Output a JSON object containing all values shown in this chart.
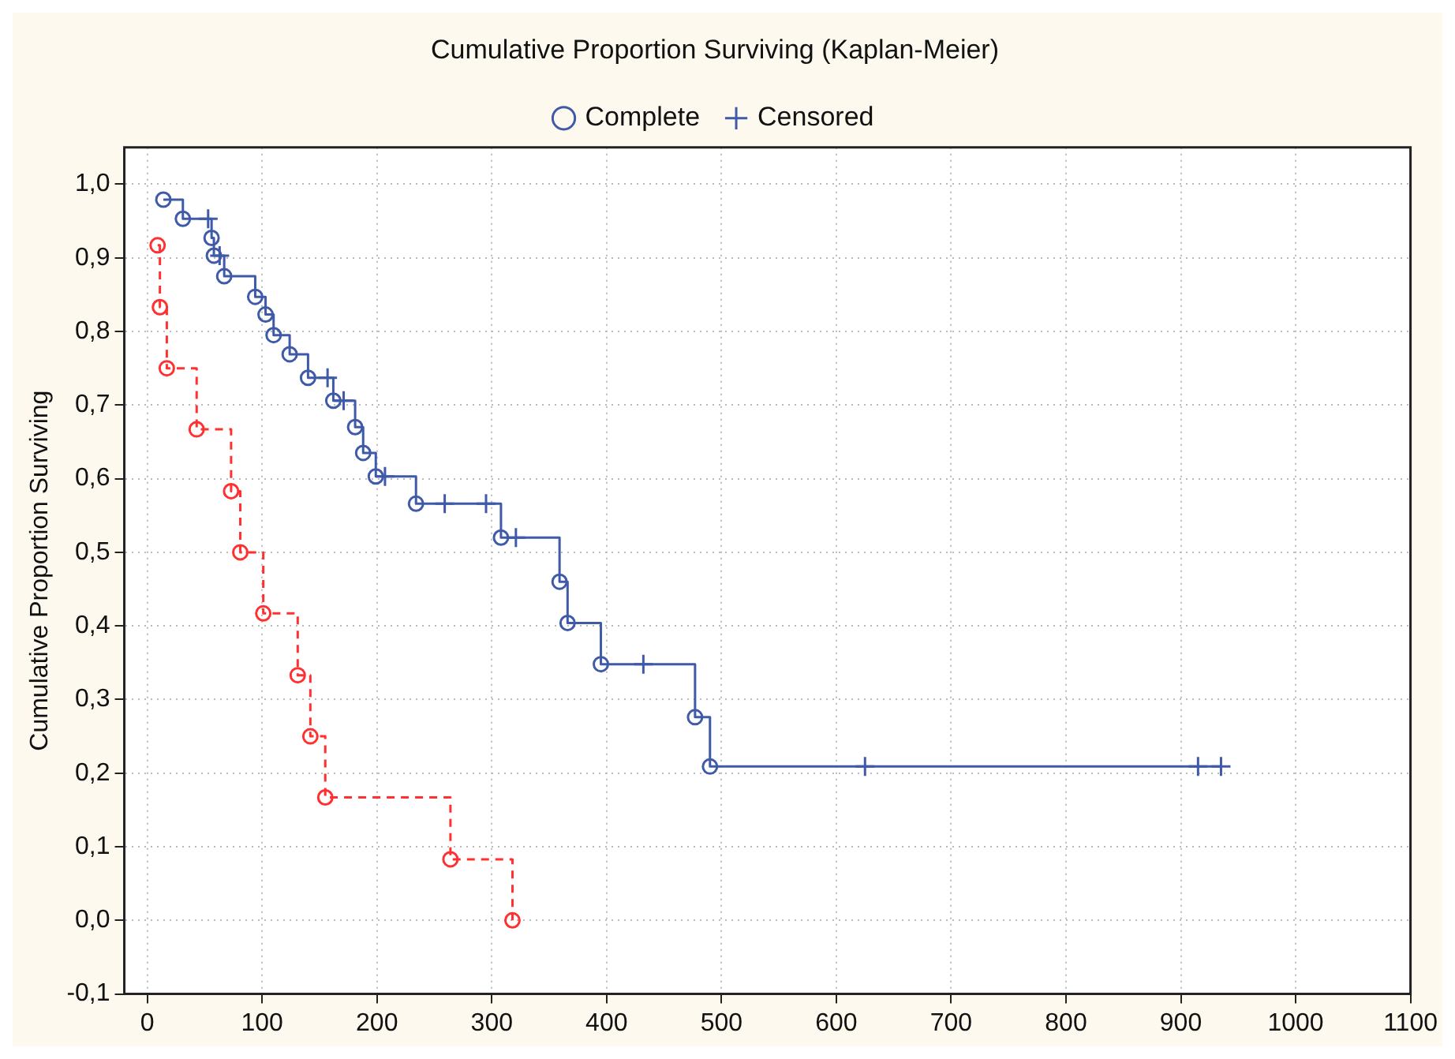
{
  "chart_data": {
    "type": "step",
    "title": "Cumulative Proportion Surviving (Kaplan-Meier)",
    "ylabel": "Cumulative Proportion Surviving",
    "xlim": [
      -20,
      1100
    ],
    "xticks": [
      0,
      100,
      200,
      300,
      400,
      500,
      600,
      700,
      800,
      900,
      1000,
      1100
    ],
    "ylim": [
      -0.1,
      1.05
    ],
    "yticks": [
      {
        "value": -0.1,
        "label": "-0,1"
      },
      {
        "value": 0,
        "label": "0,0"
      },
      {
        "value": 0.1,
        "label": "0,1"
      },
      {
        "value": 0.2,
        "label": "0,2"
      },
      {
        "value": 0.3,
        "label": "0,3"
      },
      {
        "value": 0.4,
        "label": "0,4"
      },
      {
        "value": 0.5,
        "label": "0,5"
      },
      {
        "value": 0.6,
        "label": "0,6"
      },
      {
        "value": 0.7,
        "label": "0,7"
      },
      {
        "value": 0.8,
        "label": "0,8"
      },
      {
        "value": 0.9,
        "label": "0,9"
      },
      {
        "value": 1.0,
        "label": "1,0"
      }
    ],
    "grid": true,
    "legend": "top",
    "series": [
      {
        "color": "#3f5aa8",
        "line_style": "solid",
        "marker": "none",
        "x": [
          14,
          31,
          53,
          56,
          58,
          63,
          67,
          94,
          103,
          110,
          124,
          140,
          157,
          162,
          171,
          181,
          188,
          199,
          207,
          234,
          259,
          295,
          308,
          321,
          359,
          366,
          395,
          432,
          477,
          490,
          625,
          915,
          935
        ],
        "values": [
          0.979,
          0.953,
          0.953,
          0.927,
          0.903,
          0.903,
          0.875,
          0.847,
          0.823,
          0.795,
          0.769,
          0.737,
          0.737,
          0.706,
          0.706,
          0.67,
          0.635,
          0.603,
          0.603,
          0.566,
          0.566,
          0.566,
          0.52,
          0.52,
          0.46,
          0.404,
          0.348,
          0.348,
          0.276,
          0.209,
          0.209,
          0.209,
          0.209
        ]
      },
      {
        "color": "#ff3030",
        "line_style": "dashed",
        "marker": "none",
        "x": [
          9,
          11,
          17,
          43,
          73,
          81,
          101,
          131,
          142,
          155,
          264,
          318
        ],
        "values": [
          0.917,
          0.833,
          0.75,
          0.667,
          0.583,
          0.5,
          0.417,
          0.333,
          0.25,
          0.167,
          0.083,
          0.0
        ]
      },
      {
        "type": "scatter",
        "name": "Complete",
        "marker": "circle",
        "x": [
          14,
          31,
          56,
          58,
          67,
          94,
          103,
          110,
          124,
          140,
          162,
          181,
          188,
          199,
          234,
          308,
          359,
          366,
          395,
          477,
          490,
          9,
          11,
          17,
          43,
          73,
          81,
          101,
          131,
          142,
          155,
          264,
          318
        ],
        "values": [
          0.979,
          0.953,
          0.927,
          0.903,
          0.875,
          0.847,
          0.823,
          0.795,
          0.769,
          0.737,
          0.706,
          0.67,
          0.635,
          0.603,
          0.566,
          0.52,
          0.46,
          0.404,
          0.348,
          0.276,
          0.209,
          0.917,
          0.833,
          0.75,
          0.667,
          0.583,
          0.5,
          0.417,
          0.333,
          0.25,
          0.167,
          0.083,
          0.0
        ],
        "colors": [
          "#3f5aa8",
          "#3f5aa8",
          "#3f5aa8",
          "#3f5aa8",
          "#3f5aa8",
          "#3f5aa8",
          "#3f5aa8",
          "#3f5aa8",
          "#3f5aa8",
          "#3f5aa8",
          "#3f5aa8",
          "#3f5aa8",
          "#3f5aa8",
          "#3f5aa8",
          "#3f5aa8",
          "#3f5aa8",
          "#3f5aa8",
          "#3f5aa8",
          "#3f5aa8",
          "#3f5aa8",
          "#3f5aa8",
          "#ff3030",
          "#ff3030",
          "#ff3030",
          "#ff3030",
          "#ff3030",
          "#ff3030",
          "#ff3030",
          "#ff3030",
          "#ff3030",
          "#ff3030",
          "#ff3030",
          "#ff3030"
        ]
      },
      {
        "type": "scatter",
        "name": "Censored",
        "marker": "cross",
        "color": "#3f5aa8",
        "x": [
          53,
          63,
          157,
          171,
          207,
          259,
          295,
          321,
          432,
          625,
          915,
          935
        ],
        "values": [
          0.953,
          0.903,
          0.737,
          0.706,
          0.603,
          0.566,
          0.566,
          0.52,
          0.348,
          0.209,
          0.209,
          0.209
        ]
      }
    ]
  }
}
